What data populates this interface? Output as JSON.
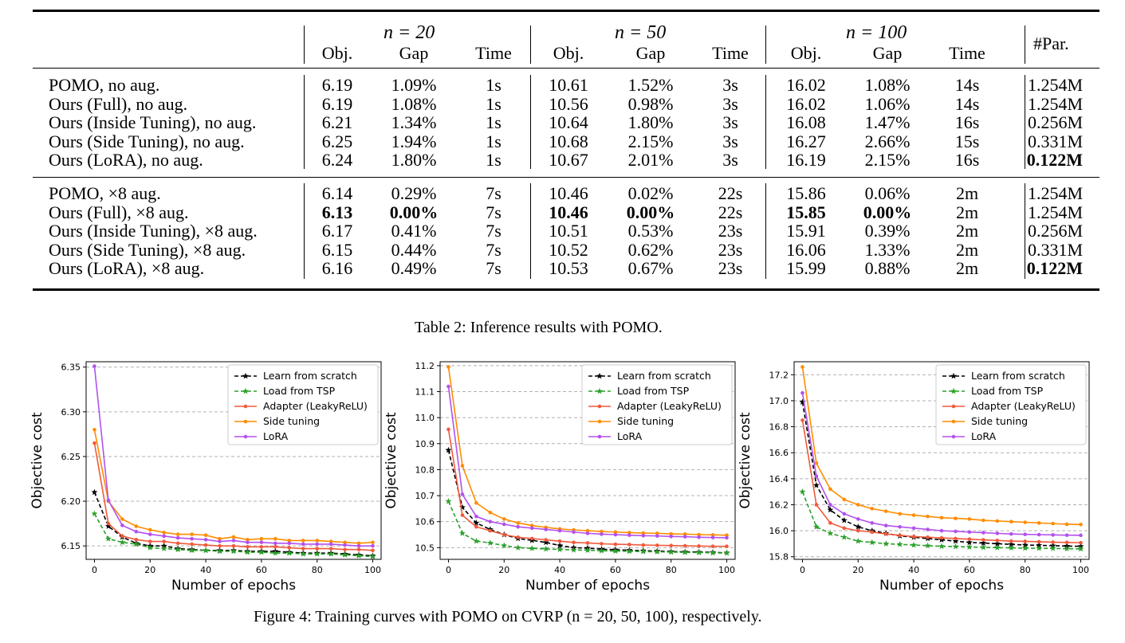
{
  "table": {
    "groups": [
      "n = 20",
      "n = 50",
      "n = 100"
    ],
    "sub_headers": [
      "Obj.",
      "Gap",
      "Time"
    ],
    "par_header": "#Par.",
    "sections": [
      [
        {
          "method": "POMO, no aug.",
          "vals": [
            "6.19",
            "1.09%",
            "1s",
            "10.61",
            "1.52%",
            "3s",
            "16.02",
            "1.08%",
            "14s"
          ],
          "par": "1.254M",
          "bold": []
        },
        {
          "method": "Ours (Full), no aug.",
          "vals": [
            "6.19",
            "1.08%",
            "1s",
            "10.56",
            "0.98%",
            "3s",
            "16.02",
            "1.06%",
            "14s"
          ],
          "par": "1.254M",
          "bold": []
        },
        {
          "method": "Ours (Inside Tuning), no aug.",
          "vals": [
            "6.21",
            "1.34%",
            "1s",
            "10.64",
            "1.80%",
            "3s",
            "16.08",
            "1.47%",
            "16s"
          ],
          "par": "0.256M",
          "bold": []
        },
        {
          "method": "Ours (Side Tuning), no aug.",
          "vals": [
            "6.25",
            "1.94%",
            "1s",
            "10.68",
            "2.15%",
            "3s",
            "16.27",
            "2.66%",
            "15s"
          ],
          "par": "0.331M",
          "bold": []
        },
        {
          "method": "Ours (LoRA), no aug.",
          "vals": [
            "6.24",
            "1.80%",
            "1s",
            "10.67",
            "2.01%",
            "3s",
            "16.19",
            "2.15%",
            "16s"
          ],
          "par": "0.122M",
          "bold": [
            9
          ]
        }
      ],
      [
        {
          "method": "POMO, ×8 aug.",
          "vals": [
            "6.14",
            "0.29%",
            "7s",
            "10.46",
            "0.02%",
            "22s",
            "15.86",
            "0.06%",
            "2m"
          ],
          "par": "1.254M",
          "bold": []
        },
        {
          "method": "Ours (Full), ×8 aug.",
          "vals": [
            "6.13",
            "0.00%",
            "7s",
            "10.46",
            "0.00%",
            "22s",
            "15.85",
            "0.00%",
            "2m"
          ],
          "par": "1.254M",
          "bold": [
            0,
            1,
            3,
            4,
            6,
            7
          ]
        },
        {
          "method": "Ours (Inside Tuning), ×8 aug.",
          "vals": [
            "6.17",
            "0.41%",
            "7s",
            "10.51",
            "0.53%",
            "23s",
            "15.91",
            "0.39%",
            "2m"
          ],
          "par": "0.256M",
          "bold": []
        },
        {
          "method": "Ours (Side Tuning), ×8 aug.",
          "vals": [
            "6.15",
            "0.44%",
            "7s",
            "10.52",
            "0.62%",
            "23s",
            "16.06",
            "1.33%",
            "2m"
          ],
          "par": "0.331M",
          "bold": []
        },
        {
          "method": "Ours (LoRA), ×8 aug.",
          "vals": [
            "6.16",
            "0.49%",
            "7s",
            "10.53",
            "0.67%",
            "23s",
            "15.99",
            "0.88%",
            "2m"
          ],
          "par": "0.122M",
          "bold": [
            9
          ]
        }
      ]
    ],
    "caption": "Table 2: Inference results with POMO."
  },
  "figure_caption": "Figure 4: Training curves with POMO on CVRP (n = 20, 50, 100), respectively.",
  "chart_data": [
    {
      "type": "line",
      "xlabel": "Number of epochs",
      "ylabel": "Objective cost",
      "xlim": [
        -3,
        103
      ],
      "ylim": [
        6.135,
        6.356
      ],
      "xticks": [
        0,
        20,
        40,
        60,
        80,
        100
      ],
      "yticks": [
        6.15,
        6.2,
        6.25,
        6.3,
        6.35
      ],
      "ytick_labels": [
        "6.15",
        "6.20",
        "6.25",
        "6.30",
        "6.35"
      ],
      "grid": "horizontal dashed",
      "legend": "top-right",
      "x": [
        0,
        5,
        10,
        15,
        20,
        25,
        30,
        35,
        40,
        45,
        50,
        55,
        60,
        65,
        70,
        75,
        80,
        85,
        90,
        95,
        100
      ],
      "series": [
        {
          "name": "Learn from scratch",
          "color": "#000000",
          "dash": true,
          "marker": "star",
          "values": [
            6.21,
            6.172,
            6.16,
            6.153,
            6.15,
            6.15,
            6.147,
            6.146,
            6.145,
            6.145,
            6.145,
            6.144,
            6.144,
            6.144,
            6.143,
            6.142,
            6.142,
            6.142,
            6.141,
            6.14,
            6.139
          ]
        },
        {
          "name": "Load from TSP",
          "color": "#2ca02c",
          "dash": true,
          "marker": "star",
          "values": [
            6.186,
            6.158,
            6.154,
            6.152,
            6.148,
            6.147,
            6.146,
            6.145,
            6.145,
            6.144,
            6.144,
            6.143,
            6.143,
            6.142,
            6.142,
            6.141,
            6.141,
            6.141,
            6.14,
            6.139,
            6.138
          ]
        },
        {
          "name": "Adapter (LeakyReLU)",
          "color": "#f05a3c",
          "dash": false,
          "marker": "dot",
          "values": [
            6.265,
            6.175,
            6.161,
            6.157,
            6.155,
            6.155,
            6.153,
            6.152,
            6.151,
            6.15,
            6.15,
            6.149,
            6.149,
            6.149,
            6.148,
            6.147,
            6.147,
            6.147,
            6.146,
            6.146,
            6.145
          ]
        },
        {
          "name": "Side tuning",
          "color": "#ff8c00",
          "dash": false,
          "marker": "dot",
          "values": [
            6.28,
            6.2,
            6.18,
            6.172,
            6.168,
            6.165,
            6.163,
            6.163,
            6.162,
            6.158,
            6.16,
            6.157,
            6.158,
            6.158,
            6.156,
            6.156,
            6.156,
            6.155,
            6.154,
            6.153,
            6.154
          ]
        },
        {
          "name": "LoRA",
          "color": "#b351ee",
          "dash": false,
          "marker": "dot",
          "values": [
            6.351,
            6.201,
            6.173,
            6.166,
            6.163,
            6.161,
            6.159,
            6.158,
            6.157,
            6.155,
            6.156,
            6.154,
            6.154,
            6.153,
            6.153,
            6.152,
            6.152,
            6.152,
            6.151,
            6.15,
            6.15
          ]
        }
      ]
    },
    {
      "type": "line",
      "xlabel": "Number of epochs",
      "ylabel": "Objective cost",
      "xlim": [
        -3,
        103
      ],
      "ylim": [
        10.455,
        11.215
      ],
      "xticks": [
        0,
        20,
        40,
        60,
        80,
        100
      ],
      "yticks": [
        10.5,
        10.6,
        10.7,
        10.8,
        10.9,
        11.0,
        11.1,
        11.2
      ],
      "ytick_labels": [
        "10.5",
        "10.6",
        "10.7",
        "10.8",
        "10.9",
        "11.0",
        "11.1",
        "11.2"
      ],
      "grid": "horizontal dashed",
      "legend": "top-right",
      "x": [
        0,
        5,
        10,
        15,
        20,
        25,
        30,
        35,
        40,
        45,
        50,
        55,
        60,
        65,
        70,
        75,
        80,
        85,
        90,
        95,
        100
      ],
      "series": [
        {
          "name": "Learn from scratch",
          "color": "#000000",
          "dash": true,
          "marker": "star",
          "values": [
            10.875,
            10.655,
            10.595,
            10.57,
            10.55,
            10.535,
            10.528,
            10.52,
            10.508,
            10.5,
            10.498,
            10.494,
            10.492,
            10.49,
            10.488,
            10.487,
            10.485,
            10.484,
            10.483,
            10.482,
            10.48
          ]
        },
        {
          "name": "Load from TSP",
          "color": "#2ca02c",
          "dash": true,
          "marker": "star",
          "values": [
            10.678,
            10.555,
            10.525,
            10.518,
            10.508,
            10.5,
            10.497,
            10.495,
            10.493,
            10.491,
            10.49,
            10.488,
            10.487,
            10.486,
            10.485,
            10.484,
            10.483,
            10.482,
            10.481,
            10.48,
            10.479
          ]
        },
        {
          "name": "Adapter (LeakyReLU)",
          "color": "#f05a3c",
          "dash": false,
          "marker": "dot",
          "values": [
            10.955,
            10.625,
            10.58,
            10.565,
            10.55,
            10.54,
            10.535,
            10.53,
            10.525,
            10.52,
            10.518,
            10.515,
            10.513,
            10.512,
            10.51,
            10.509,
            10.508,
            10.507,
            10.506,
            10.505,
            10.505
          ]
        },
        {
          "name": "Side tuning",
          "color": "#ff8c00",
          "dash": false,
          "marker": "dot",
          "values": [
            11.195,
            10.815,
            10.672,
            10.635,
            10.61,
            10.595,
            10.585,
            10.578,
            10.572,
            10.568,
            10.565,
            10.562,
            10.56,
            10.558,
            10.556,
            10.555,
            10.553,
            10.552,
            10.55,
            10.549,
            10.548
          ]
        },
        {
          "name": "LoRA",
          "color": "#b351ee",
          "dash": false,
          "marker": "dot",
          "values": [
            11.12,
            10.705,
            10.62,
            10.6,
            10.59,
            10.58,
            10.575,
            10.57,
            10.565,
            10.56,
            10.555,
            10.552,
            10.55,
            10.548,
            10.546,
            10.545,
            10.543,
            10.542,
            10.54,
            10.539,
            10.538
          ]
        }
      ]
    },
    {
      "type": "line",
      "xlabel": "Number of epochs",
      "ylabel": "Objective cost",
      "xlim": [
        -3,
        103
      ],
      "ylim": [
        15.78,
        17.3
      ],
      "xticks": [
        0,
        20,
        40,
        60,
        80,
        100
      ],
      "yticks": [
        15.8,
        16.0,
        16.2,
        16.4,
        16.6,
        16.8,
        17.0,
        17.2
      ],
      "ytick_labels": [
        "15.8",
        "16.0",
        "16.2",
        "16.4",
        "16.6",
        "16.8",
        "17.0",
        "17.2"
      ],
      "grid": "horizontal dashed",
      "legend": "top-right",
      "x": [
        0,
        5,
        10,
        15,
        20,
        25,
        30,
        35,
        40,
        45,
        50,
        55,
        60,
        65,
        70,
        75,
        80,
        85,
        90,
        95,
        100
      ],
      "series": [
        {
          "name": "Learn from scratch",
          "color": "#000000",
          "dash": true,
          "marker": "star",
          "values": [
            16.99,
            16.35,
            16.16,
            16.08,
            16.03,
            16.0,
            15.98,
            15.96,
            15.95,
            15.94,
            15.93,
            15.92,
            15.91,
            15.905,
            15.9,
            15.895,
            15.89,
            15.888,
            15.885,
            15.882,
            15.88
          ]
        },
        {
          "name": "Load from TSP",
          "color": "#2ca02c",
          "dash": true,
          "marker": "star",
          "values": [
            16.3,
            16.03,
            15.98,
            15.95,
            15.92,
            15.91,
            15.9,
            15.895,
            15.89,
            15.885,
            15.88,
            15.878,
            15.875,
            15.872,
            15.87,
            15.868,
            15.866,
            15.865,
            15.864,
            15.862,
            15.86
          ]
        },
        {
          "name": "Adapter (LeakyReLU)",
          "color": "#f05a3c",
          "dash": false,
          "marker": "dot",
          "values": [
            16.85,
            16.2,
            16.06,
            16.02,
            16.0,
            15.99,
            15.975,
            15.965,
            15.955,
            15.95,
            15.945,
            15.94,
            15.935,
            15.93,
            15.925,
            15.92,
            15.918,
            15.915,
            15.912,
            15.91,
            15.908
          ]
        },
        {
          "name": "Side tuning",
          "color": "#ff8c00",
          "dash": false,
          "marker": "dot",
          "values": [
            17.26,
            16.52,
            16.32,
            16.24,
            16.2,
            16.17,
            16.15,
            16.13,
            16.12,
            16.11,
            16.1,
            16.095,
            16.09,
            16.08,
            16.075,
            16.07,
            16.065,
            16.06,
            16.055,
            16.05,
            16.048
          ]
        },
        {
          "name": "LoRA",
          "color": "#b351ee",
          "dash": false,
          "marker": "dot",
          "values": [
            17.06,
            16.42,
            16.2,
            16.13,
            16.09,
            16.06,
            16.04,
            16.03,
            16.02,
            16.01,
            16.0,
            15.995,
            15.99,
            15.985,
            15.98,
            15.975,
            15.972,
            15.97,
            15.968,
            15.966,
            15.965
          ]
        }
      ]
    }
  ]
}
